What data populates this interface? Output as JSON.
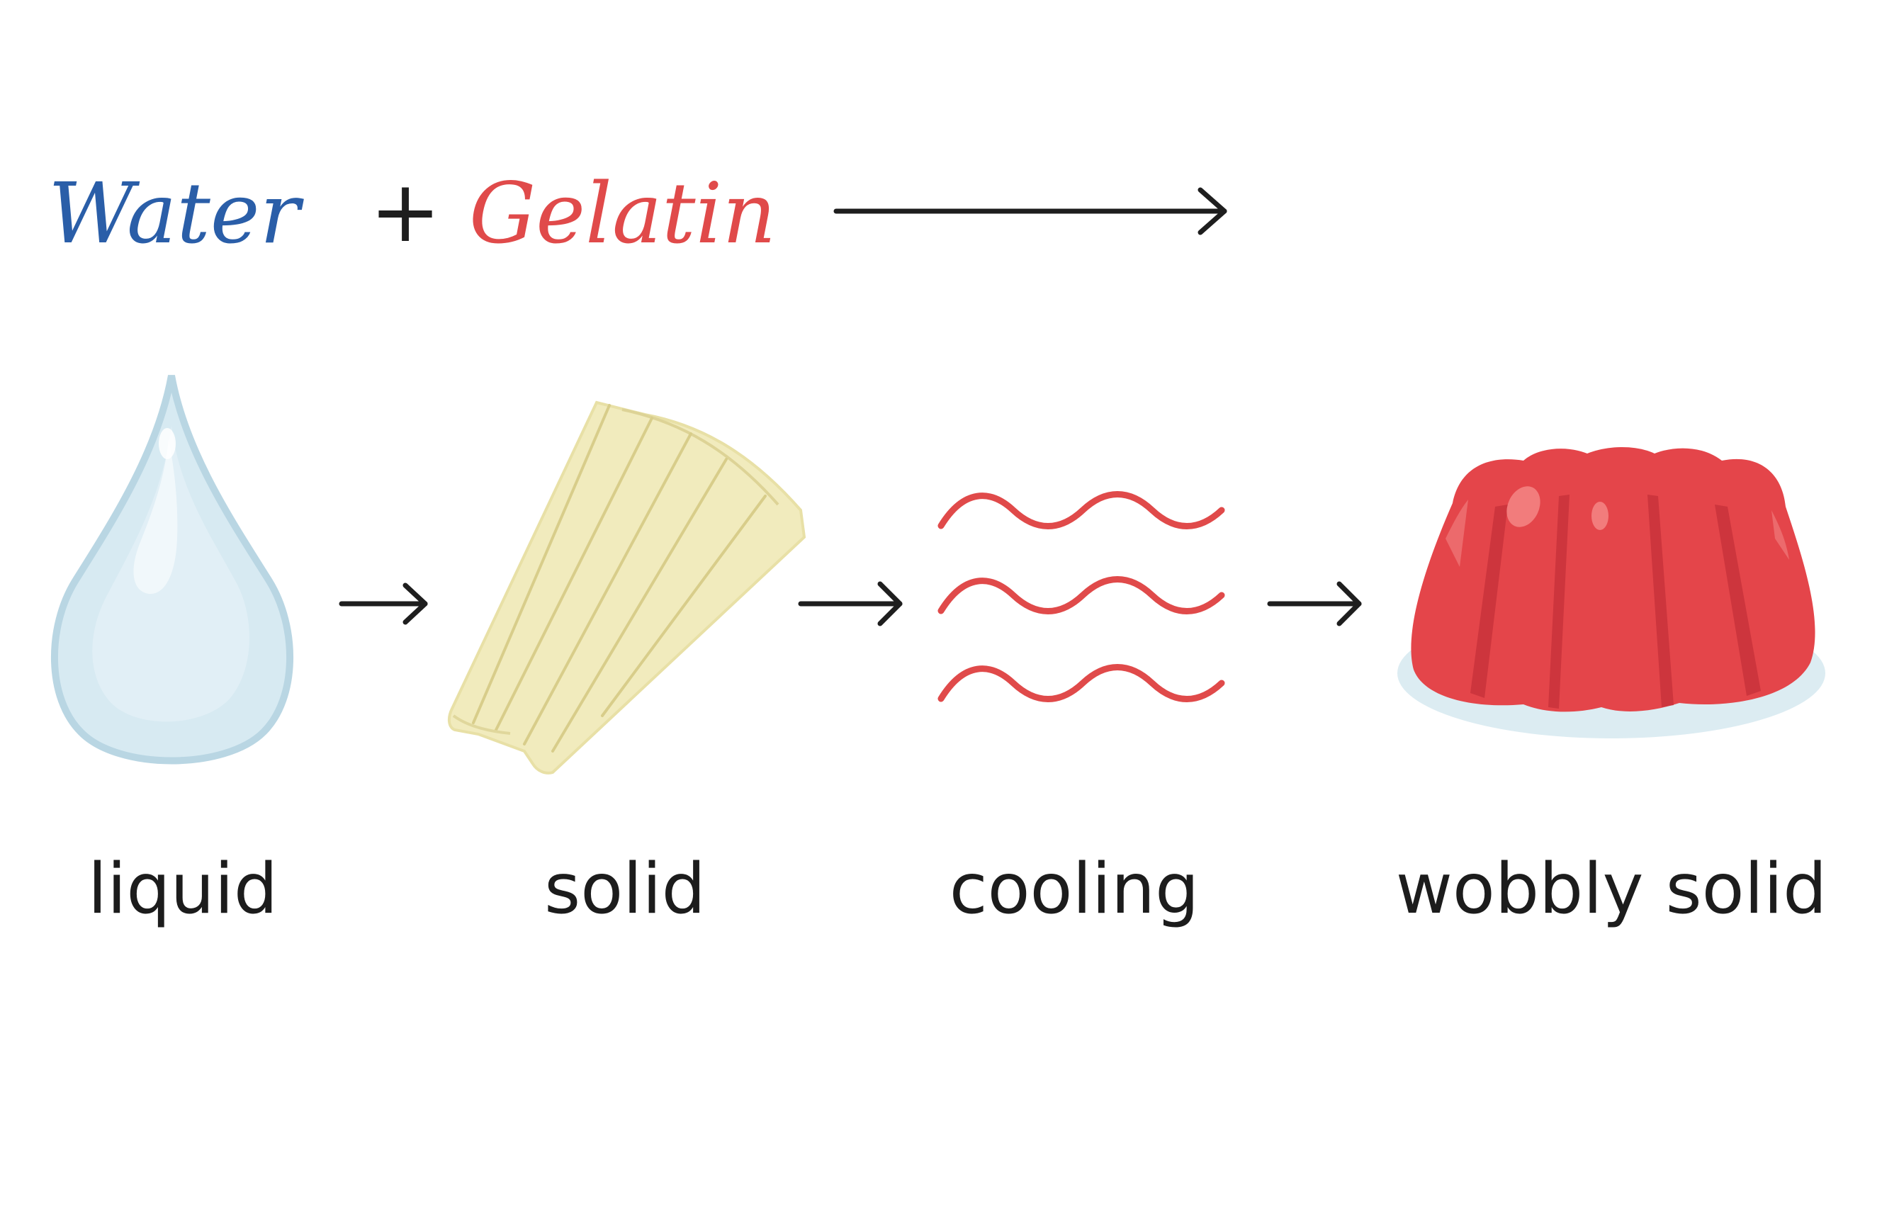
{
  "equation": {
    "water": "Water",
    "plus": "+",
    "gelatin": "Gelatin"
  },
  "stages": [
    {
      "label": "liquid",
      "icon": "water-drop-icon"
    },
    {
      "label": "solid",
      "icon": "gelatin-sheets-icon"
    },
    {
      "label": "cooling",
      "icon": "cooling-waves-icon"
    },
    {
      "label": "wobbly solid",
      "icon": "jelly-mold-icon"
    }
  ],
  "colors": {
    "water_text": "#2a5ea8",
    "gelatin_text": "#e04a4a",
    "arrow": "#1e1e1e",
    "wave": "#e04a4a",
    "drop": "#d7eaf2",
    "gelatin_sheet": "#f1ebbd",
    "jelly": "#e4454a"
  }
}
